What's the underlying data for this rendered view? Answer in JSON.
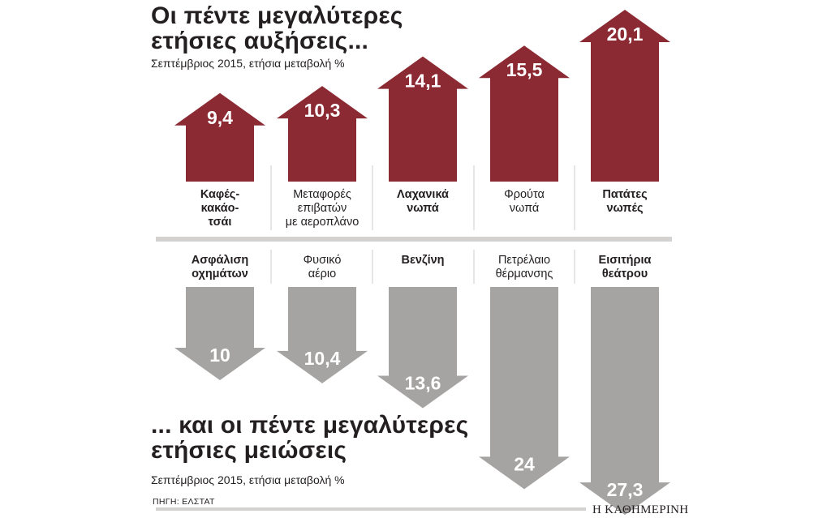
{
  "title_top": "Οι πέντε μεγαλύτερες ετήσιες αυξήσεις...",
  "subtitle_top": "Σεπτέμβριος 2015, ετήσια μεταβολή %",
  "title_bottom": "... και οι πέντε μεγαλύτερες ετήσιες μειώσεις",
  "subtitle_bottom": "Σεπτέμβριος 2015, ετήσια μεταβολή %",
  "source": "ΠΗΓΗ: ΕΛΣΤΑΤ",
  "brand": "Η ΚΑΘΗΜΕΡΙΝΗ",
  "colors": {
    "increase": "#8c2a33",
    "decrease": "#a6a4a3",
    "divider": "#d4d2d1",
    "text": "#231f20"
  },
  "chart_data": [
    {
      "type": "bar",
      "title": "Οι πέντε μεγαλύτερες ετήσιες αυξήσεις...",
      "subtitle": "Σεπτέμβριος 2015, ετήσια μεταβολή %",
      "categories": [
        "Καφές-κακάο-τσάι",
        "Μεταφορές επιβατών με αεροπλάνο",
        "Λαχανικά νωπά",
        "Φρούτα νωπά",
        "Πατάτες νωπές"
      ],
      "category_lines": [
        [
          "Καφές-",
          "κακάο-",
          "τσάι"
        ],
        [
          "Μεταφορές",
          "επιβατών",
          "με αεροπλάνο"
        ],
        [
          "Λαχανικά",
          "νωπά"
        ],
        [
          "Φρούτα",
          "νωπά"
        ],
        [
          "Πατάτες",
          "νωπές"
        ]
      ],
      "bold": [
        true,
        false,
        true,
        false,
        true
      ],
      "values": [
        9.4,
        10.3,
        14.1,
        15.5,
        20.1
      ],
      "value_labels": [
        "9,4",
        "10,3",
        "14,1",
        "15,5",
        "20,1"
      ],
      "direction": "up"
    },
    {
      "type": "bar",
      "title": "... και οι πέντε μεγαλύτερες ετήσιες μειώσεις",
      "subtitle": "Σεπτέμβριος 2015, ετήσια μεταβολή %",
      "categories": [
        "Ασφάλιση οχημάτων",
        "Φυσικό αέριο",
        "Βενζίνη",
        "Πετρέλαιο θέρμανσης",
        "Εισιτήρια θεάτρου"
      ],
      "category_lines": [
        [
          "Ασφάλιση",
          "οχημάτων"
        ],
        [
          "Φυσικό",
          "αέριο"
        ],
        [
          "Βενζίνη"
        ],
        [
          "Πετρέλαιο",
          "θέρμανσης"
        ],
        [
          "Εισιτήρια",
          "θεάτρου"
        ]
      ],
      "bold": [
        true,
        false,
        true,
        false,
        true
      ],
      "values": [
        -10,
        -10.4,
        -13.6,
        -24,
        -27.3
      ],
      "value_labels": [
        "10",
        "10,4",
        "13,6",
        "24",
        "27,3"
      ],
      "direction": "down"
    }
  ]
}
